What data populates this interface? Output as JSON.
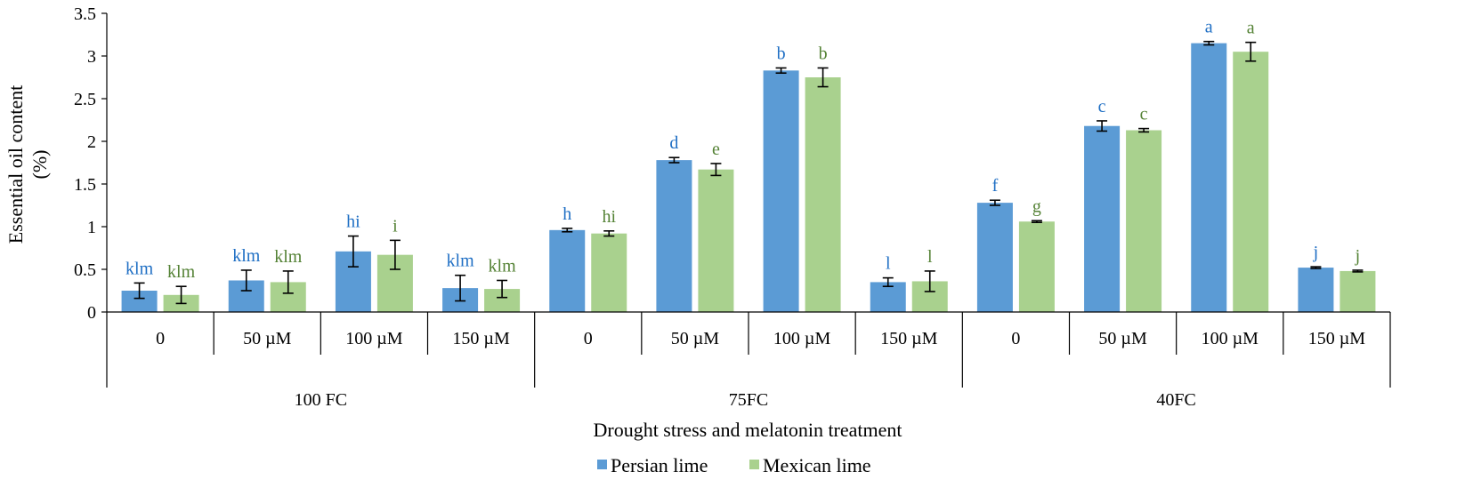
{
  "chart_data": {
    "type": "bar",
    "title": "",
    "xlabel": "Drought stress and melatonin treatment",
    "ylabel_line1": "Essential oil content",
    "ylabel_line2": "(%)",
    "ylim": [
      0,
      3.5
    ],
    "yticks": [
      "0",
      "0.5",
      "1",
      "1.5",
      "2",
      "2.5",
      "3",
      "3.5"
    ],
    "groups": [
      "100 FC",
      "75FC",
      "40FC"
    ],
    "categories": [
      "0",
      "50 µM",
      "100 µM",
      "150 µM",
      "0",
      "50 µM",
      "100 µM",
      "150 µM",
      "0",
      "50 µM",
      "100 µM",
      "150 µM"
    ],
    "series": [
      {
        "name": "Persian lime",
        "color": "#5B9BD5",
        "label_color": "#1F6FC4",
        "values": [
          0.25,
          0.37,
          0.71,
          0.28,
          0.96,
          1.78,
          2.83,
          0.35,
          1.28,
          2.18,
          3.15,
          0.52
        ],
        "errors": [
          0.09,
          0.12,
          0.18,
          0.15,
          0.02,
          0.03,
          0.03,
          0.05,
          0.03,
          0.06,
          0.02,
          0.01
        ],
        "labels": [
          "klm",
          "klm",
          "hi",
          "klm",
          "h",
          "d",
          "b",
          "l",
          "f",
          "c",
          "a",
          "j"
        ]
      },
      {
        "name": "Mexican lime",
        "color": "#A9D18E",
        "label_color": "#548235",
        "values": [
          0.2,
          0.35,
          0.67,
          0.27,
          0.92,
          1.67,
          2.75,
          0.36,
          1.06,
          2.13,
          3.05,
          0.48
        ],
        "errors": [
          0.1,
          0.13,
          0.17,
          0.1,
          0.03,
          0.07,
          0.11,
          0.12,
          0.01,
          0.02,
          0.11,
          0.01
        ],
        "labels": [
          "klm",
          "klm",
          "i",
          "klm",
          "hi",
          "e",
          "b",
          "l",
          "g",
          "c",
          "a",
          "j"
        ]
      }
    ],
    "legend_position": "bottom-center"
  }
}
